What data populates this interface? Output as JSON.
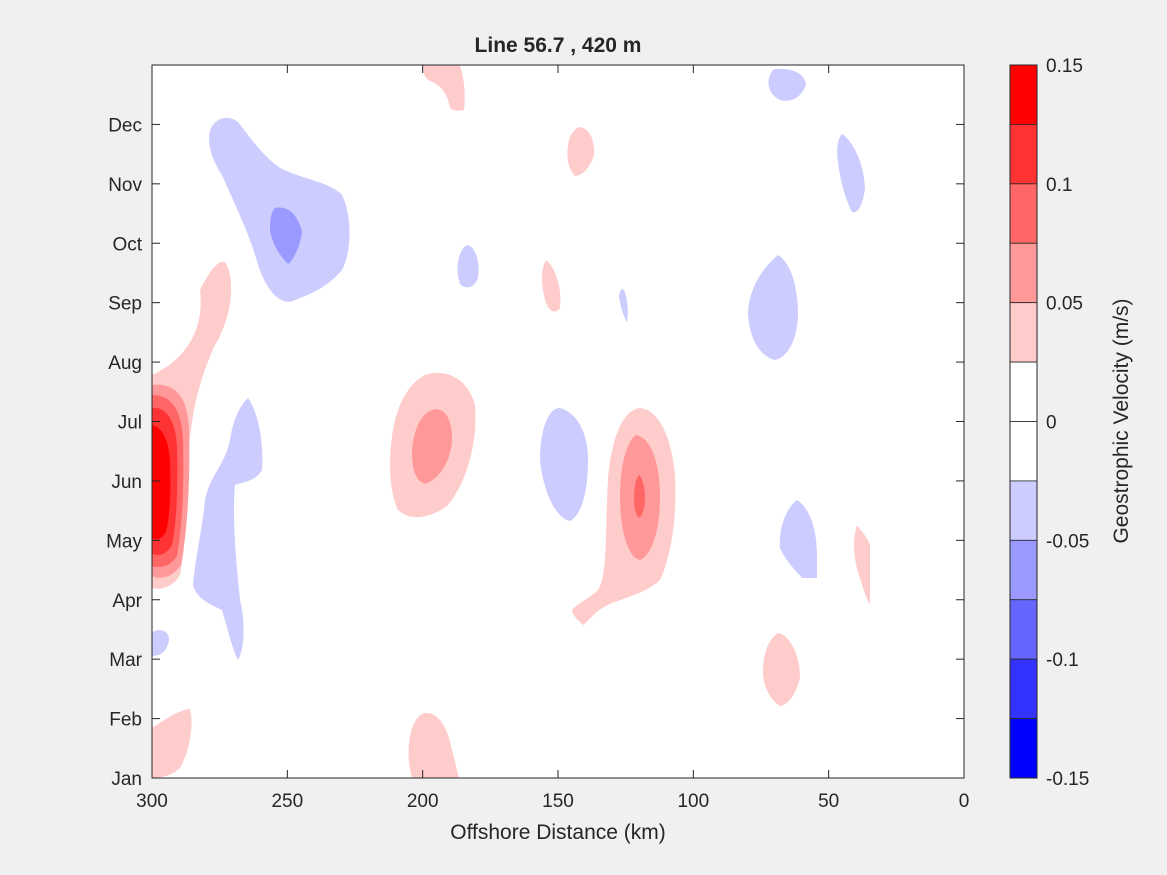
{
  "chart_data": {
    "type": "heatmap",
    "subtype": "filled-contour",
    "title": "Line 56.7 , 420 m",
    "xlabel": "Offshore Distance (km)",
    "ylabel": "",
    "x_reversed": true,
    "xlim": [
      300,
      0
    ],
    "x_ticks": [
      "300",
      "250",
      "200",
      "150",
      "100",
      "50",
      "0"
    ],
    "y_ticks": [
      "Jan",
      "Feb",
      "Mar",
      "Apr",
      "May",
      "Jun",
      "Jul",
      "Aug",
      "Sep",
      "Oct",
      "Nov",
      "Dec"
    ],
    "colorbar": {
      "label": "Geostrophic Velocity (m/s)",
      "range": [
        -0.15,
        0.15
      ],
      "tick_labels": [
        "0.15",
        "0.1",
        "0.05",
        "0",
        "-0.05",
        "-0.1",
        "-0.15"
      ],
      "levels": [
        {
          "value": 0.15,
          "color": "#ff0000"
        },
        {
          "value": 0.125,
          "color": "#ff3333"
        },
        {
          "value": 0.1,
          "color": "#ff6666"
        },
        {
          "value": 0.075,
          "color": "#ff9999"
        },
        {
          "value": 0.05,
          "color": "#ffcccc"
        },
        {
          "value": 0.025,
          "color": "#ffffff"
        },
        {
          "value": -0.025,
          "color": "#ffffff"
        },
        {
          "value": -0.05,
          "color": "#ccccff"
        },
        {
          "value": -0.075,
          "color": "#9999ff"
        },
        {
          "value": -0.1,
          "color": "#6666ff"
        },
        {
          "value": -0.125,
          "color": "#3333ff"
        },
        {
          "value": -0.15,
          "color": "#0000ff"
        }
      ]
    },
    "features": [
      {
        "km": 298,
        "month": 5.5,
        "peak": 0.15
      },
      {
        "km": 195,
        "month": 6.2,
        "peak": 0.075
      },
      {
        "km": 120,
        "month": 5.7,
        "peak": 0.1
      },
      {
        "km": 253,
        "month": 10.0,
        "peak": -0.075
      },
      {
        "km": 148,
        "month": 6.0,
        "peak": -0.05
      },
      {
        "km": 68,
        "month": 8.9,
        "peak": -0.05
      },
      {
        "km": 58,
        "month": 5.0,
        "peak": -0.05
      },
      {
        "km": 285,
        "month": 1.3,
        "peak": 0.05
      },
      {
        "km": 68,
        "month": 3.0,
        "peak": 0.05
      }
    ]
  }
}
